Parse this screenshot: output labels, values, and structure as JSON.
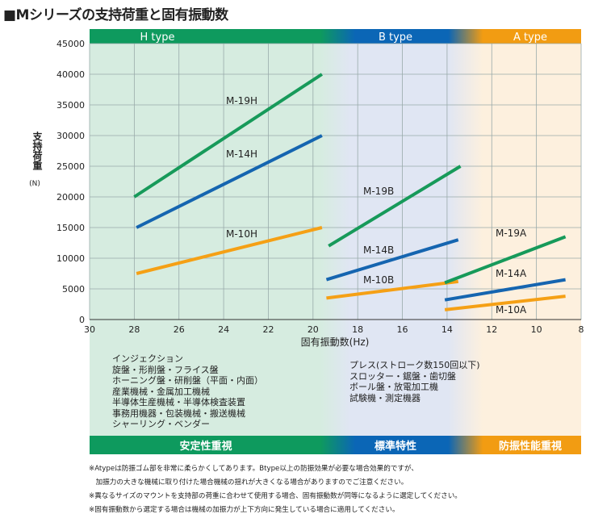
{
  "title": "■Mシリーズの支持荷重と固有振動数",
  "chart_data": {
    "type": "line",
    "xlabel": "固有振動数(Hz)",
    "ylabel": "支持荷重",
    "ylabel_unit": "(N)",
    "xlim": [
      30,
      8
    ],
    "x_reversed": true,
    "ylim": [
      0,
      45000
    ],
    "xticks": [
      30,
      28,
      26,
      24,
      22,
      20,
      18,
      16,
      14,
      12,
      10,
      8
    ],
    "yticks": [
      0,
      5000,
      10000,
      15000,
      20000,
      25000,
      30000,
      35000,
      40000,
      45000
    ],
    "grid": true,
    "bands": [
      {
        "label": "H type",
        "bottom_label": "安定性重視",
        "color": "#0e9a5e",
        "bg": "#d6ece0"
      },
      {
        "label": "B type",
        "bottom_label": "標準特性",
        "color": "#0b66b6",
        "bg": "#e0e6f3"
      },
      {
        "label": "A type",
        "bottom_label": "防振性能重視",
        "color": "#f29c12",
        "bg": "#fdf0de"
      }
    ],
    "series": [
      {
        "name": "M-19H",
        "color": "#179a5a",
        "points": [
          [
            28,
            20000
          ],
          [
            19.6,
            40000
          ]
        ]
      },
      {
        "name": "M-14H",
        "color": "#1565b0",
        "points": [
          [
            27.9,
            15000
          ],
          [
            19.6,
            30000
          ]
        ]
      },
      {
        "name": "M-10H",
        "color": "#f5a015",
        "points": [
          [
            27.9,
            7500
          ],
          [
            19.6,
            15000
          ]
        ]
      },
      {
        "name": "M-19B",
        "color": "#179a5a",
        "points": [
          [
            19.3,
            12000
          ],
          [
            13.4,
            25000
          ]
        ]
      },
      {
        "name": "M-14B",
        "color": "#1565b0",
        "points": [
          [
            19.4,
            6500
          ],
          [
            13.5,
            13000
          ]
        ]
      },
      {
        "name": "M-10B",
        "color": "#f5a015",
        "points": [
          [
            19.4,
            3500
          ],
          [
            13.5,
            6200
          ]
        ]
      },
      {
        "name": "M-19A",
        "color": "#179a5a",
        "points": [
          [
            14.1,
            6000
          ],
          [
            8.7,
            13500
          ]
        ]
      },
      {
        "name": "M-14A",
        "color": "#1565b0",
        "points": [
          [
            14.1,
            3200
          ],
          [
            8.7,
            6500
          ]
        ]
      },
      {
        "name": "M-10A",
        "color": "#f5a015",
        "points": [
          [
            14.1,
            1600
          ],
          [
            8.7,
            3800
          ]
        ]
      }
    ]
  },
  "uses": {
    "h": [
      "インジェクション",
      "旋盤・形削盤・フライス盤",
      "ホーニング盤・研削盤（平面・内面）",
      "産業機械・金属加工機械",
      "半導体生産機械・半導体検査装置",
      "事務用機器・包装機械・搬送機械",
      "シャーリング・ベンダー"
    ],
    "b": [
      "プレス(ストローク数150回以下)",
      "スロッター・鋸盤・歯切盤",
      "ボール盤・放電加工機",
      "試験機・測定機器"
    ]
  },
  "notes": [
    "※Atypeは防振ゴム部を非常に柔らかくしてあります。Btype以上の防振効果が必要な場合効果的ですが、",
    "　加振力の大きな機械に取り付けた場合機械の揺れが大きくなる場合がありますのでご注意ください。",
    "※異なるサイズのマウントを支持部の荷重に合わせて使用する場合、固有振動数が同等になるように選定してください。",
    "※固有振動数から選定する場合は機械の加振力が上下方向に発生している場合に適用してください。"
  ]
}
